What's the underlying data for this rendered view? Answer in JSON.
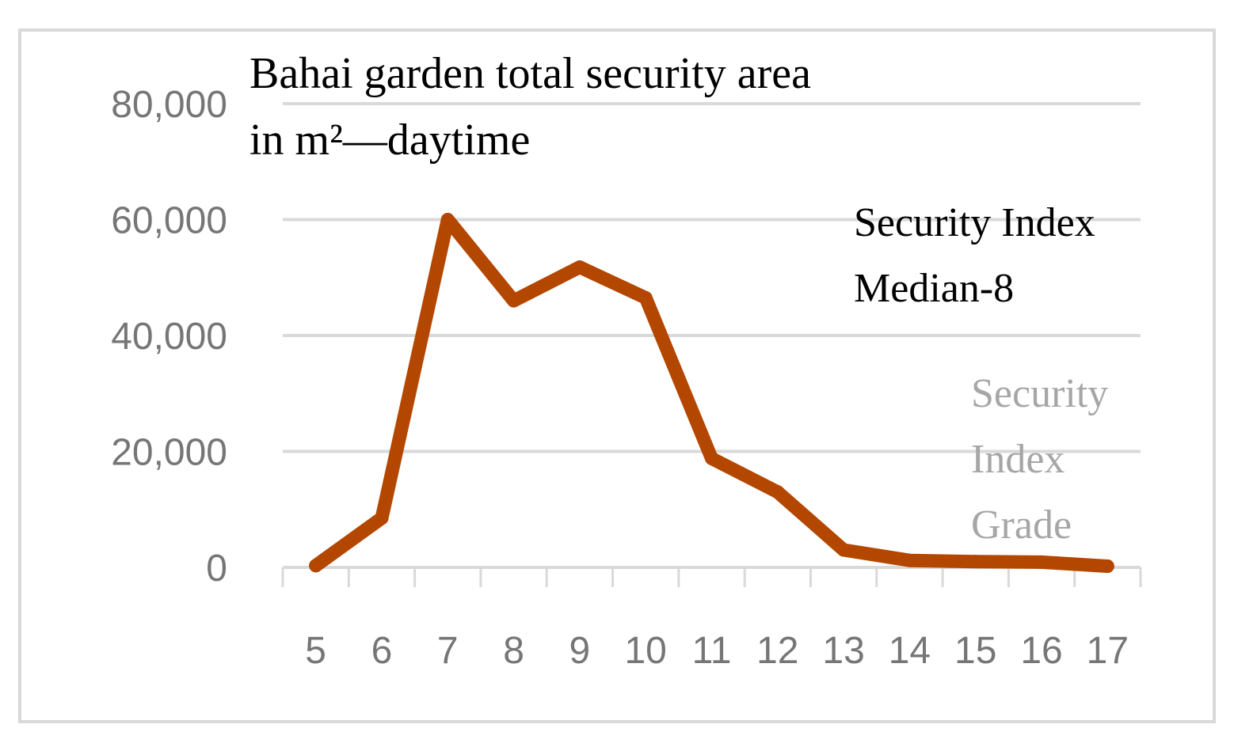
{
  "chart_data": {
    "type": "line",
    "title_lines": [
      "Bahai garden total security area",
      "in m²—daytime"
    ],
    "annotation_lines": [
      "Security Index",
      "Median-8"
    ],
    "xlabel_lines": [
      "Security",
      "Index",
      "Grade"
    ],
    "ylabel": "",
    "categories": [
      "5",
      "6",
      "7",
      "8",
      "9",
      "10",
      "11",
      "12",
      "13",
      "14",
      "15",
      "16",
      "17"
    ],
    "series": [
      {
        "values": [
          300,
          8500,
          60000,
          46000,
          51800,
          46500,
          18800,
          13000,
          3000,
          1200,
          1000,
          900,
          200
        ]
      }
    ],
    "ylim": [
      0,
      80000
    ],
    "yticks": [
      0,
      20000,
      40000,
      60000,
      80000
    ],
    "ytick_labels": [
      "0",
      "20,000",
      "40,000",
      "60,000",
      "80,000"
    ],
    "grid": true,
    "legend": "none",
    "colors": {
      "line": "#b34700",
      "grid": "#d9d9d9",
      "border": "#d9d9d9",
      "tick_text": "#767676",
      "axis_title": "#a6a6a6"
    }
  }
}
